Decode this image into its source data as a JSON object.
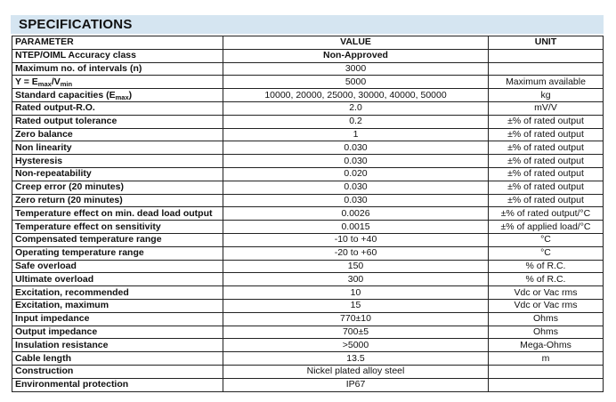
{
  "title": "SPECIFICATIONS",
  "headers": {
    "parameter": "PARAMETER",
    "value": "VALUE",
    "unit": "UNIT"
  },
  "rows": [
    {
      "parameter": "NTEP/OIML Accuracy class",
      "value": "Non-Approved",
      "unit": "",
      "value_bold": true
    },
    {
      "parameter": "Maximum no. of intervals (n)",
      "value": "3000",
      "unit": ""
    },
    {
      "parameter": "Y = Emax/Vmin",
      "parameter_parts": [
        {
          "t": "Y = E"
        },
        {
          "sub": "max"
        },
        {
          "t": "/V"
        },
        {
          "sub": "min"
        }
      ],
      "value": "5000",
      "unit": "Maximum available"
    },
    {
      "parameter": "Standard capacities (Emax)",
      "parameter_parts": [
        {
          "t": "Standard capacities (E"
        },
        {
          "sub": "max"
        },
        {
          "t": ")"
        }
      ],
      "value": "10000, 20000, 25000, 30000, 40000, 50000",
      "unit": "kg"
    },
    {
      "parameter": "Rated output-R.O.",
      "value": "2.0",
      "unit": "mV/V"
    },
    {
      "parameter": "Rated output tolerance",
      "value": "0.2",
      "unit": "±% of rated output"
    },
    {
      "parameter": "Zero balance",
      "value": "1",
      "unit": "±% of rated output"
    },
    {
      "parameter": "Non linearity",
      "value": "0.030",
      "unit": "±% of rated output"
    },
    {
      "parameter": "Hysteresis",
      "value": "0.030",
      "unit": "±% of rated output"
    },
    {
      "parameter": "Non-repeatability",
      "value": "0.020",
      "unit": "±% of rated output"
    },
    {
      "parameter": "Creep error (20 minutes)",
      "value": "0.030",
      "unit": "±% of rated output"
    },
    {
      "parameter": "Zero return (20 minutes)",
      "value": "0.030",
      "unit": "±% of rated output"
    },
    {
      "parameter": "Temperature effect on min. dead load output",
      "value": "0.0026",
      "unit": "±% of rated output/°C"
    },
    {
      "parameter": "Temperature effect on sensitivity",
      "value": "0.0015",
      "unit": "±% of applied load/°C"
    },
    {
      "parameter": "Compensated temperature range",
      "value": "-10 to +40",
      "unit": "°C"
    },
    {
      "parameter": "Operating temperature range",
      "value": "-20 to +60",
      "unit": "°C"
    },
    {
      "parameter": "Safe overload",
      "value": "150",
      "unit": "% of R.C."
    },
    {
      "parameter": "Ultimate overload",
      "value": "300",
      "unit": "% of R.C."
    },
    {
      "parameter": "Excitation, recommended",
      "value": "10",
      "unit": "Vdc or Vac rms"
    },
    {
      "parameter": "Excitation, maximum",
      "value": "15",
      "unit": "Vdc or Vac rms"
    },
    {
      "parameter": "Input impedance",
      "value": "770±10",
      "unit": "Ohms"
    },
    {
      "parameter": "Output impedance",
      "value": "700±5",
      "unit": "Ohms"
    },
    {
      "parameter": "Insulation resistance",
      "value": ">5000",
      "unit": "Mega-Ohms"
    },
    {
      "parameter": "Cable length",
      "value": "13.5",
      "unit": "m"
    },
    {
      "parameter": "Construction",
      "value": "Nickel plated alloy steel",
      "unit": ""
    },
    {
      "parameter": "Environmental protection",
      "value": "IP67",
      "unit": ""
    }
  ],
  "colors": {
    "title_bar": "#d5e5f1",
    "border": "#222222"
  }
}
